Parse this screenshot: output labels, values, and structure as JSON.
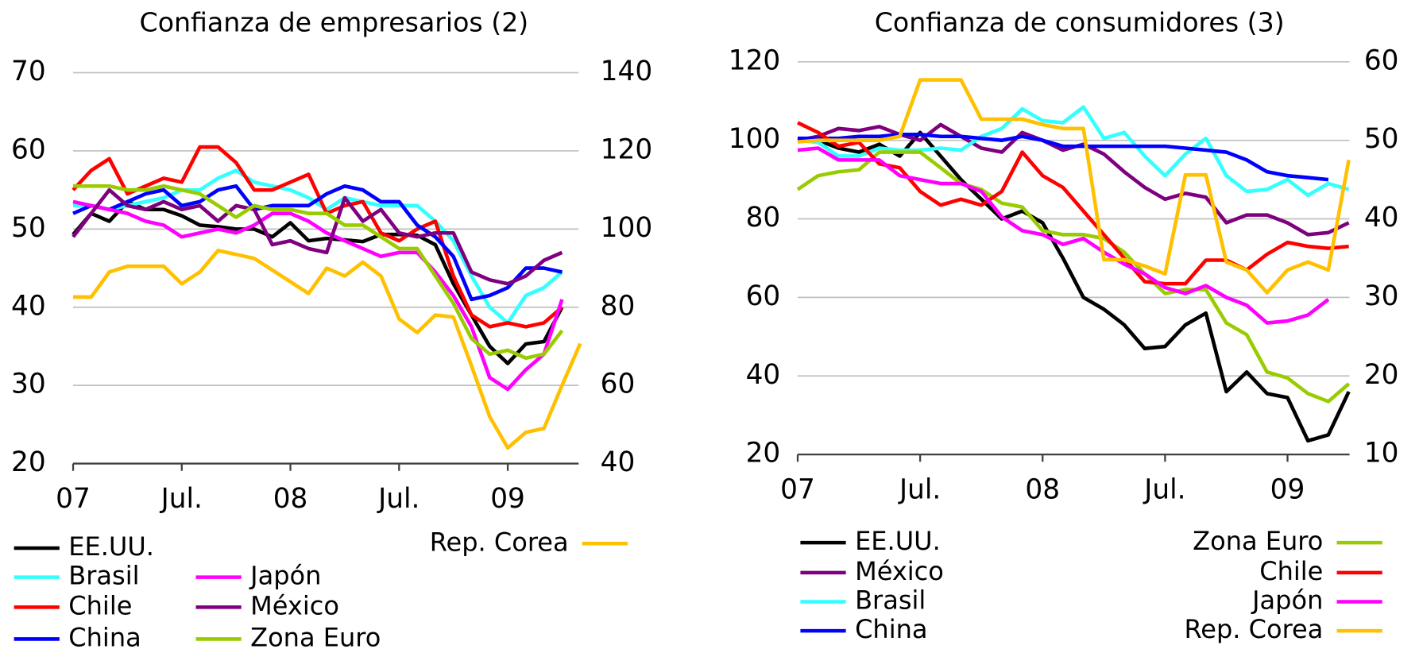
{
  "chart_data": [
    {
      "type": "line",
      "title": "Confianza de empresarios (2)",
      "categories": [
        "07",
        null,
        null,
        null,
        null,
        null,
        "Jul.",
        null,
        null,
        null,
        null,
        null,
        "08",
        null,
        null,
        null,
        null,
        null,
        "Jul.",
        null,
        null,
        null,
        null,
        null,
        "09",
        null,
        null,
        null,
        null
      ],
      "ylim": [
        20,
        70
      ],
      "yticks": [
        20,
        30,
        40,
        50,
        60,
        70
      ],
      "y2lim": [
        40,
        140
      ],
      "y2ticks": [
        40,
        60,
        80,
        100,
        120,
        140
      ],
      "grid": true,
      "series": [
        {
          "name": "EE.UU.",
          "color": "#000000",
          "values": [
            49.3,
            52,
            51,
            53.5,
            52.5,
            52.5,
            51.7,
            50.5,
            50.3,
            50,
            50,
            49,
            50.8,
            48.5,
            48.8,
            48.6,
            48.4,
            49.3,
            49.3,
            49.2,
            48,
            43,
            39,
            35,
            32.8,
            35.3,
            35.6,
            40,
            null
          ]
        },
        {
          "name": "Brasil",
          "color": "#33ffff",
          "values": [
            53,
            53,
            52.5,
            53,
            53.5,
            54,
            55,
            55,
            56.5,
            57.5,
            56,
            55.5,
            55,
            54,
            52.5,
            54,
            53.5,
            53,
            53,
            53,
            51,
            48.5,
            44,
            40,
            38,
            41.5,
            42.5,
            44.5,
            null
          ]
        },
        {
          "name": "Chile",
          "color": "#ff0000",
          "values": [
            55,
            57.5,
            59,
            54.5,
            55.5,
            56.5,
            56,
            60.5,
            60.5,
            58.5,
            55,
            55,
            56,
            57,
            52,
            53,
            53.5,
            49.5,
            48.5,
            50,
            51,
            44,
            39,
            37.5,
            38,
            37.5,
            38,
            40,
            null
          ]
        },
        {
          "name": "China",
          "color": "#0000ff",
          "values": [
            52,
            53,
            52.5,
            53.5,
            54.5,
            55,
            53,
            53.5,
            55,
            55.5,
            52.5,
            53,
            53,
            53,
            54.5,
            55.5,
            55,
            53.5,
            53.5,
            50.5,
            49,
            46.5,
            41,
            41.5,
            42.5,
            45,
            45,
            44.5,
            null
          ]
        },
        {
          "name": "Japón",
          "color": "#ff00ff",
          "values": [
            53.5,
            53,
            52.5,
            52,
            51,
            50.5,
            49,
            49.5,
            50,
            49.5,
            50.5,
            52,
            52,
            51,
            49.5,
            48.5,
            47.5,
            46.5,
            47,
            47,
            44.5,
            41.5,
            37.5,
            31,
            29.5,
            32,
            34,
            41,
            null
          ]
        },
        {
          "name": "México",
          "color": "#7f007f",
          "values": [
            49,
            52,
            55,
            53,
            52.5,
            53.5,
            52.5,
            53,
            51,
            53,
            52.5,
            48,
            48.5,
            47.5,
            47,
            54,
            51,
            52.5,
            49.5,
            49,
            49.5,
            49.5,
            44.5,
            43.5,
            43,
            44,
            46,
            47,
            null
          ]
        },
        {
          "name": "Zona Euro",
          "color": "#99cc00",
          "values": [
            55.5,
            55.5,
            55.5,
            55,
            55,
            55.5,
            55,
            54.5,
            53,
            51.5,
            53,
            52.5,
            52.5,
            52,
            52,
            50.5,
            50.5,
            49,
            47.5,
            47.5,
            44,
            40.5,
            36,
            34,
            34.5,
            33.5,
            34,
            37,
            null
          ]
        },
        {
          "name": "Rep. Corea",
          "color": "#ffc000",
          "axis": "y2",
          "values": [
            82.6,
            82.6,
            89,
            90.5,
            90.5,
            90.5,
            86,
            89,
            94.5,
            93.5,
            92.5,
            89.5,
            86.5,
            83.5,
            90,
            88,
            91.5,
            88,
            77,
            73.5,
            78,
            77.5,
            65,
            52,
            44,
            48,
            49,
            60,
            70.7
          ]
        }
      ]
    },
    {
      "type": "line",
      "title": "Confianza de consumidores (3)",
      "categories": [
        "07",
        null,
        null,
        null,
        null,
        null,
        "Jul.",
        null,
        null,
        null,
        null,
        null,
        "08",
        null,
        null,
        null,
        null,
        null,
        "Jul.",
        null,
        null,
        null,
        null,
        null,
        "09",
        null,
        null,
        null
      ],
      "ylim": [
        20,
        120
      ],
      "yticks": [
        20,
        40,
        60,
        80,
        100,
        120
      ],
      "y2lim": [
        10,
        60
      ],
      "y2ticks": [
        10,
        20,
        30,
        40,
        50,
        60
      ],
      "grid": true,
      "series": [
        {
          "name": "EE.UU.",
          "color": "#000000",
          "values": [
            100,
            100,
            98,
            97,
            99,
            96,
            102,
            96,
            90,
            85,
            80,
            82,
            79,
            70,
            60,
            57,
            53,
            47,
            47.5,
            53,
            56,
            36,
            41,
            35.5,
            34.5,
            23.5,
            25,
            36
          ]
        },
        {
          "name": "México",
          "color": "#7f007f",
          "values": [
            100,
            101,
            103,
            102.5,
            103.5,
            101.5,
            100,
            104,
            101,
            98,
            97,
            102,
            100,
            97.5,
            99,
            96.5,
            92,
            88,
            85,
            86.5,
            85.5,
            79,
            81,
            81,
            79,
            76,
            76.5,
            79
          ]
        },
        {
          "name": "Brasil",
          "color": "#33ffff",
          "values": [
            100,
            99.5,
            96,
            96,
            98,
            97.5,
            97.5,
            98,
            97.5,
            101,
            103,
            108,
            105,
            104.5,
            108.5,
            100.5,
            102,
            96,
            91,
            96.5,
            100.5,
            91,
            87,
            87.5,
            90,
            86,
            89,
            87.5
          ]
        },
        {
          "name": "China",
          "color": "#0000ff",
          "values": [
            100.5,
            100.5,
            100.5,
            101,
            101,
            101.5,
            101.5,
            101,
            101,
            100.5,
            100,
            101,
            100,
            98.5,
            98.5,
            98.5,
            98.5,
            98.5,
            98.5,
            98,
            97.5,
            97,
            95,
            92,
            91,
            90.5,
            90,
            null
          ]
        },
        {
          "name": "Zona Euro",
          "color": "#99cc00",
          "values": [
            87.5,
            91,
            92,
            92.5,
            97,
            97,
            97,
            93,
            89,
            87.5,
            84,
            83,
            77,
            76,
            76,
            75,
            71.5,
            66,
            61,
            62,
            62,
            53.5,
            50.5,
            41,
            39.5,
            35.5,
            33.5,
            38
          ]
        },
        {
          "name": "Chile",
          "color": "#ff0000",
          "values": [
            104.5,
            102,
            98.5,
            99.5,
            94,
            93,
            87,
            83.5,
            85,
            83.5,
            87,
            97,
            91,
            88,
            82,
            76,
            70,
            64,
            63.5,
            63.5,
            69.5,
            69.5,
            67,
            71,
            74,
            73,
            72.5,
            73
          ]
        },
        {
          "name": "Japón",
          "color": "#ff00ff",
          "values": [
            97.5,
            98,
            95,
            95,
            95,
            91,
            90,
            89,
            89,
            87,
            80.5,
            77,
            76,
            73.5,
            75,
            71.5,
            68.5,
            66,
            62.5,
            61,
            63,
            60,
            58,
            53.5,
            54,
            55.5,
            59.5,
            null
          ]
        },
        {
          "name": "Rep. Corea",
          "color": "#ffc000",
          "axis": "y2",
          "values": [
            49.8,
            50,
            50,
            50,
            50,
            50.5,
            57.7,
            57.7,
            57.7,
            52.7,
            52.7,
            52.7,
            52,
            51.5,
            51.5,
            34.8,
            34.8,
            34,
            33,
            45.6,
            45.6,
            34.5,
            33.5,
            30.6,
            33.5,
            34.5,
            33.5,
            47.5
          ]
        }
      ]
    }
  ]
}
